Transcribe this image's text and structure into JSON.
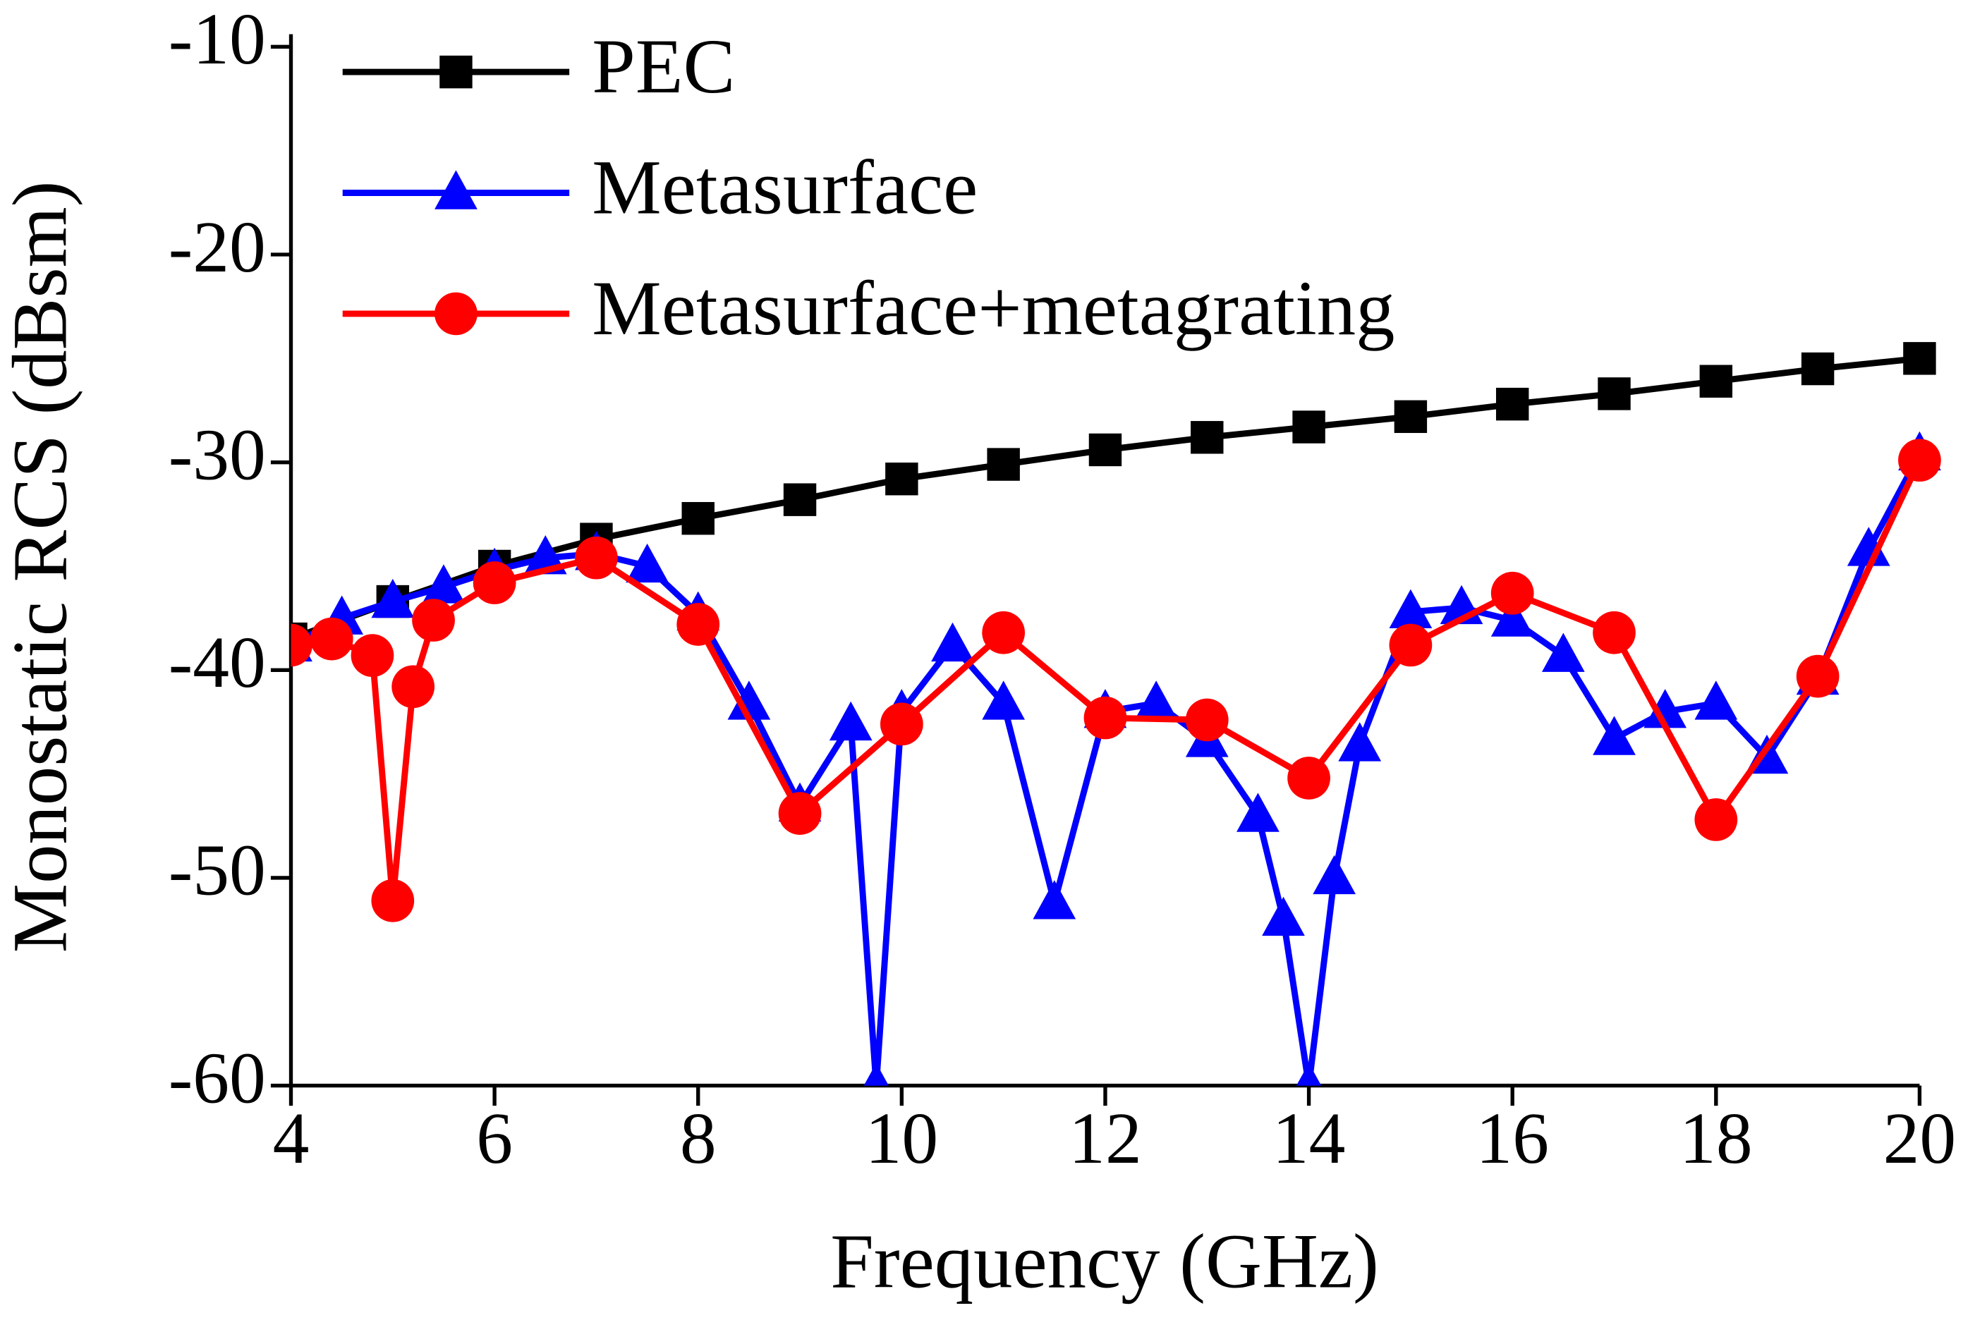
{
  "chart_data": {
    "type": "line",
    "x_label": "Frequency (GHz)",
    "y_label": "Monostatic RCS (dBsm)",
    "xlim": [
      4,
      20
    ],
    "xticks": [
      4,
      6,
      8,
      10,
      12,
      14,
      16,
      18,
      20
    ],
    "ylim": [
      -60,
      -10
    ],
    "yticks": [
      -60,
      -50,
      -40,
      -30,
      -20,
      -10
    ],
    "legend": "top-left",
    "series": [
      {
        "name": "PEC",
        "color": "#000000",
        "marker": "square",
        "x": [
          4,
          5,
          6,
          7,
          8,
          9,
          10,
          11,
          12,
          13,
          14,
          15,
          16,
          17,
          18,
          19,
          20
        ],
        "values": [
          -38.5,
          -36.7,
          -35.0,
          -33.7,
          -32.7,
          -31.8,
          -30.8,
          -30.1,
          -29.4,
          -28.8,
          -28.3,
          -27.8,
          -27.2,
          -26.7,
          -26.1,
          -25.5,
          -25.0
        ]
      },
      {
        "name": "Metasurface",
        "color": "#0000ff",
        "marker": "triangle",
        "x": [
          4,
          4.5,
          5,
          5.5,
          6,
          6.5,
          7,
          7.5,
          8,
          8.5,
          9,
          9.5,
          9.75,
          10,
          10.5,
          11,
          11.5,
          12,
          12.5,
          13,
          13.5,
          13.75,
          14,
          14.25,
          14.5,
          15,
          15.5,
          16,
          16.5,
          17,
          17.5,
          18,
          18.5,
          19,
          19.5,
          20
        ],
        "values": [
          -38.8,
          -37.5,
          -36.7,
          -36.0,
          -35.2,
          -34.6,
          -34.4,
          -35.0,
          -37.3,
          -41.6,
          -46.5,
          -42.6,
          -60,
          -42.0,
          -38.8,
          -41.6,
          -51.2,
          -42.0,
          -41.6,
          -43.4,
          -47.0,
          -52.0,
          -60,
          -50.0,
          -43.6,
          -37.2,
          -37.0,
          -37.6,
          -39.3,
          -43.3,
          -42.0,
          -41.6,
          -44.2,
          -40.4,
          -34.2,
          -29.6
        ]
      },
      {
        "name": "Metasurface+metagrating",
        "color": "#ff0000",
        "marker": "circle",
        "x": [
          4,
          4.4,
          4.8,
          5,
          5.2,
          5.4,
          6,
          7,
          8,
          9,
          10,
          11,
          12,
          13,
          14,
          15,
          16,
          17,
          18,
          19,
          20
        ],
        "values": [
          -38.8,
          -38.5,
          -39.3,
          -51.1,
          -40.8,
          -37.6,
          -35.8,
          -34.6,
          -37.8,
          -46.9,
          -42.6,
          -38.2,
          -42.3,
          -42.4,
          -45.2,
          -38.8,
          -36.3,
          -38.2,
          -47.2,
          -40.3,
          -29.9
        ]
      }
    ]
  }
}
